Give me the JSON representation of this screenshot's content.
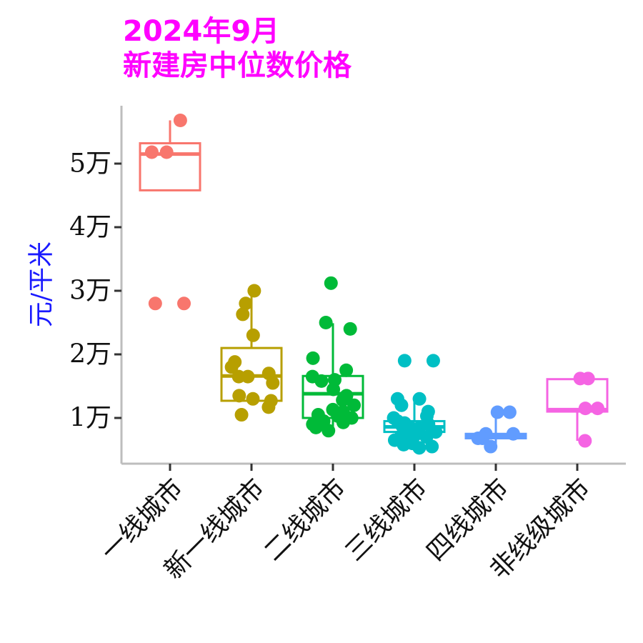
{
  "title_line1": "2024年9月",
  "title_line2": "新建房中位数价格",
  "chart_data": {
    "type": "box",
    "title": "2024年9月 新建房中位数价格",
    "xlabel": "",
    "ylabel": "元/平米",
    "ylim": [
      3000,
      58000
    ],
    "y_ticks": [
      {
        "value": 10000,
        "label": "1万"
      },
      {
        "value": 20000,
        "label": "2万"
      },
      {
        "value": 30000,
        "label": "3万"
      },
      {
        "value": 40000,
        "label": "4万"
      },
      {
        "value": 50000,
        "label": "5万"
      }
    ],
    "categories": [
      "一线城市",
      "新一线城市",
      "二线城市",
      "三线城市",
      "四线城市",
      "非线级城市"
    ],
    "series": [
      {
        "category": "一线城市",
        "color": "#F8766D",
        "box": {
          "lower_whisker": 45800,
          "q1": 45800,
          "median": 51500,
          "q3": 53200,
          "upper_whisker": 56800
        },
        "points": [
          56800,
          51800,
          51800,
          28000,
          28000
        ]
      },
      {
        "category": "新一线城市",
        "color": "#B79F00",
        "box": {
          "lower_whisker": 12700,
          "q1": 12700,
          "median": 16600,
          "q3": 21000,
          "upper_whisker": 30000
        },
        "points": [
          30000,
          28000,
          26300,
          23000,
          18800,
          18000,
          17000,
          16500,
          16500,
          15500,
          13500,
          13000,
          12700,
          11700,
          10500
        ]
      },
      {
        "category": "二线城市",
        "color": "#00BA38",
        "box": {
          "lower_whisker": 8000,
          "q1": 10000,
          "median": 13800,
          "q3": 16600,
          "upper_whisker": 24900
        },
        "points": [
          31200,
          25000,
          24000,
          19400,
          17500,
          16500,
          16000,
          15800,
          14500,
          13500,
          12800,
          12000,
          11300,
          11000,
          10500,
          10300,
          10000,
          9500,
          9300,
          9000,
          8500,
          8000
        ]
      },
      {
        "category": "三线城市",
        "color": "#00BFC4",
        "box": {
          "lower_whisker": 5300,
          "q1": 7800,
          "median": 8600,
          "q3": 9500,
          "upper_whisker": 13000
        },
        "points": [
          19000,
          19000,
          13000,
          13000,
          12000,
          11000,
          10300,
          10000,
          9500,
          9200,
          9000,
          8800,
          8600,
          8400,
          8200,
          8000,
          7800,
          7500,
          7200,
          7000,
          6800,
          6500,
          6300,
          6000,
          5800,
          5500,
          5300
        ]
      },
      {
        "category": "四线城市",
        "color": "#619CFF",
        "box": {
          "lower_whisker": 5500,
          "q1": 6800,
          "median": 7100,
          "q3": 7500,
          "upper_whisker": 10900
        },
        "points": [
          10900,
          10900,
          7500,
          7500,
          6800,
          6800,
          5500
        ]
      },
      {
        "category": "非线级城市",
        "color": "#F564E3",
        "box": {
          "lower_whisker": 6400,
          "q1": 11000,
          "median": 11300,
          "q3": 16100,
          "upper_whisker": 16100
        },
        "points": [
          16200,
          16200,
          11500,
          11500,
          6400
        ]
      }
    ]
  }
}
